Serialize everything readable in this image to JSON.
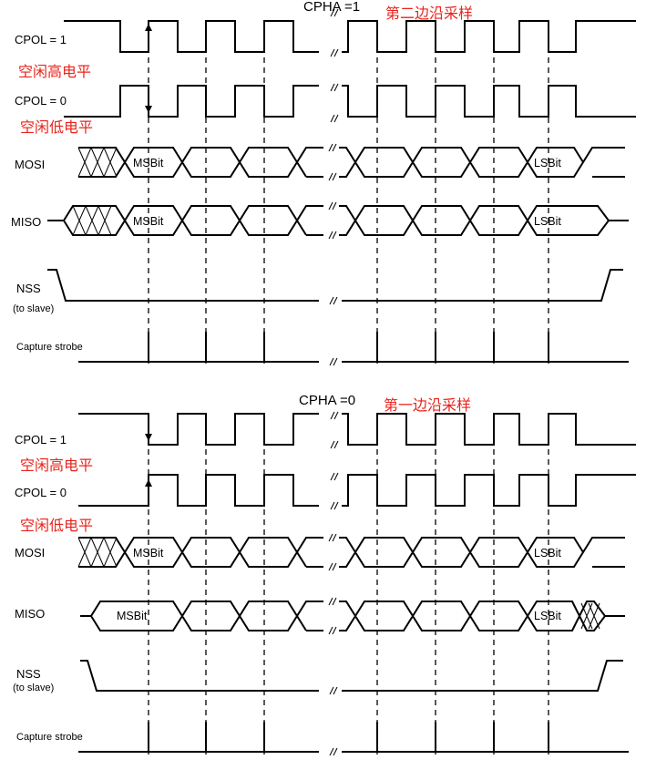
{
  "diagram": {
    "top": {
      "title": "CPHA =1",
      "note": "第二边沿采样",
      "cpol1_label": "CPOL = 1",
      "cpol1_note": "空闲高电平",
      "cpol0_label": "CPOL = 0",
      "cpol0_note": "空闲低电平",
      "mosi_label": "MOSI",
      "miso_label": "MISO",
      "mosi_msb": "MSBit",
      "mosi_lsb": "LSBit",
      "miso_msb": "MSBit",
      "miso_lsb": "LSBit",
      "nss_label": "NSS",
      "nss_sub": "(to slave)",
      "strobe_label": "Capture strobe"
    },
    "bottom": {
      "title": "CPHA =0",
      "note": "第一边沿采样",
      "cpol1_label": "CPOL = 1",
      "cpol1_note": "空闲高电平",
      "cpol0_label": "CPOL = 0",
      "cpol0_note": "空闲低电平",
      "mosi_label": "MOSI",
      "miso_label": "MISO",
      "mosi_msb": "MSBit",
      "mosi_lsb": "LSBit",
      "miso_msb": "MSBit",
      "miso_lsb": "LSBit",
      "nss_label": "NSS",
      "nss_sub": "(to slave)",
      "strobe_label": "Capture strobe"
    }
  }
}
